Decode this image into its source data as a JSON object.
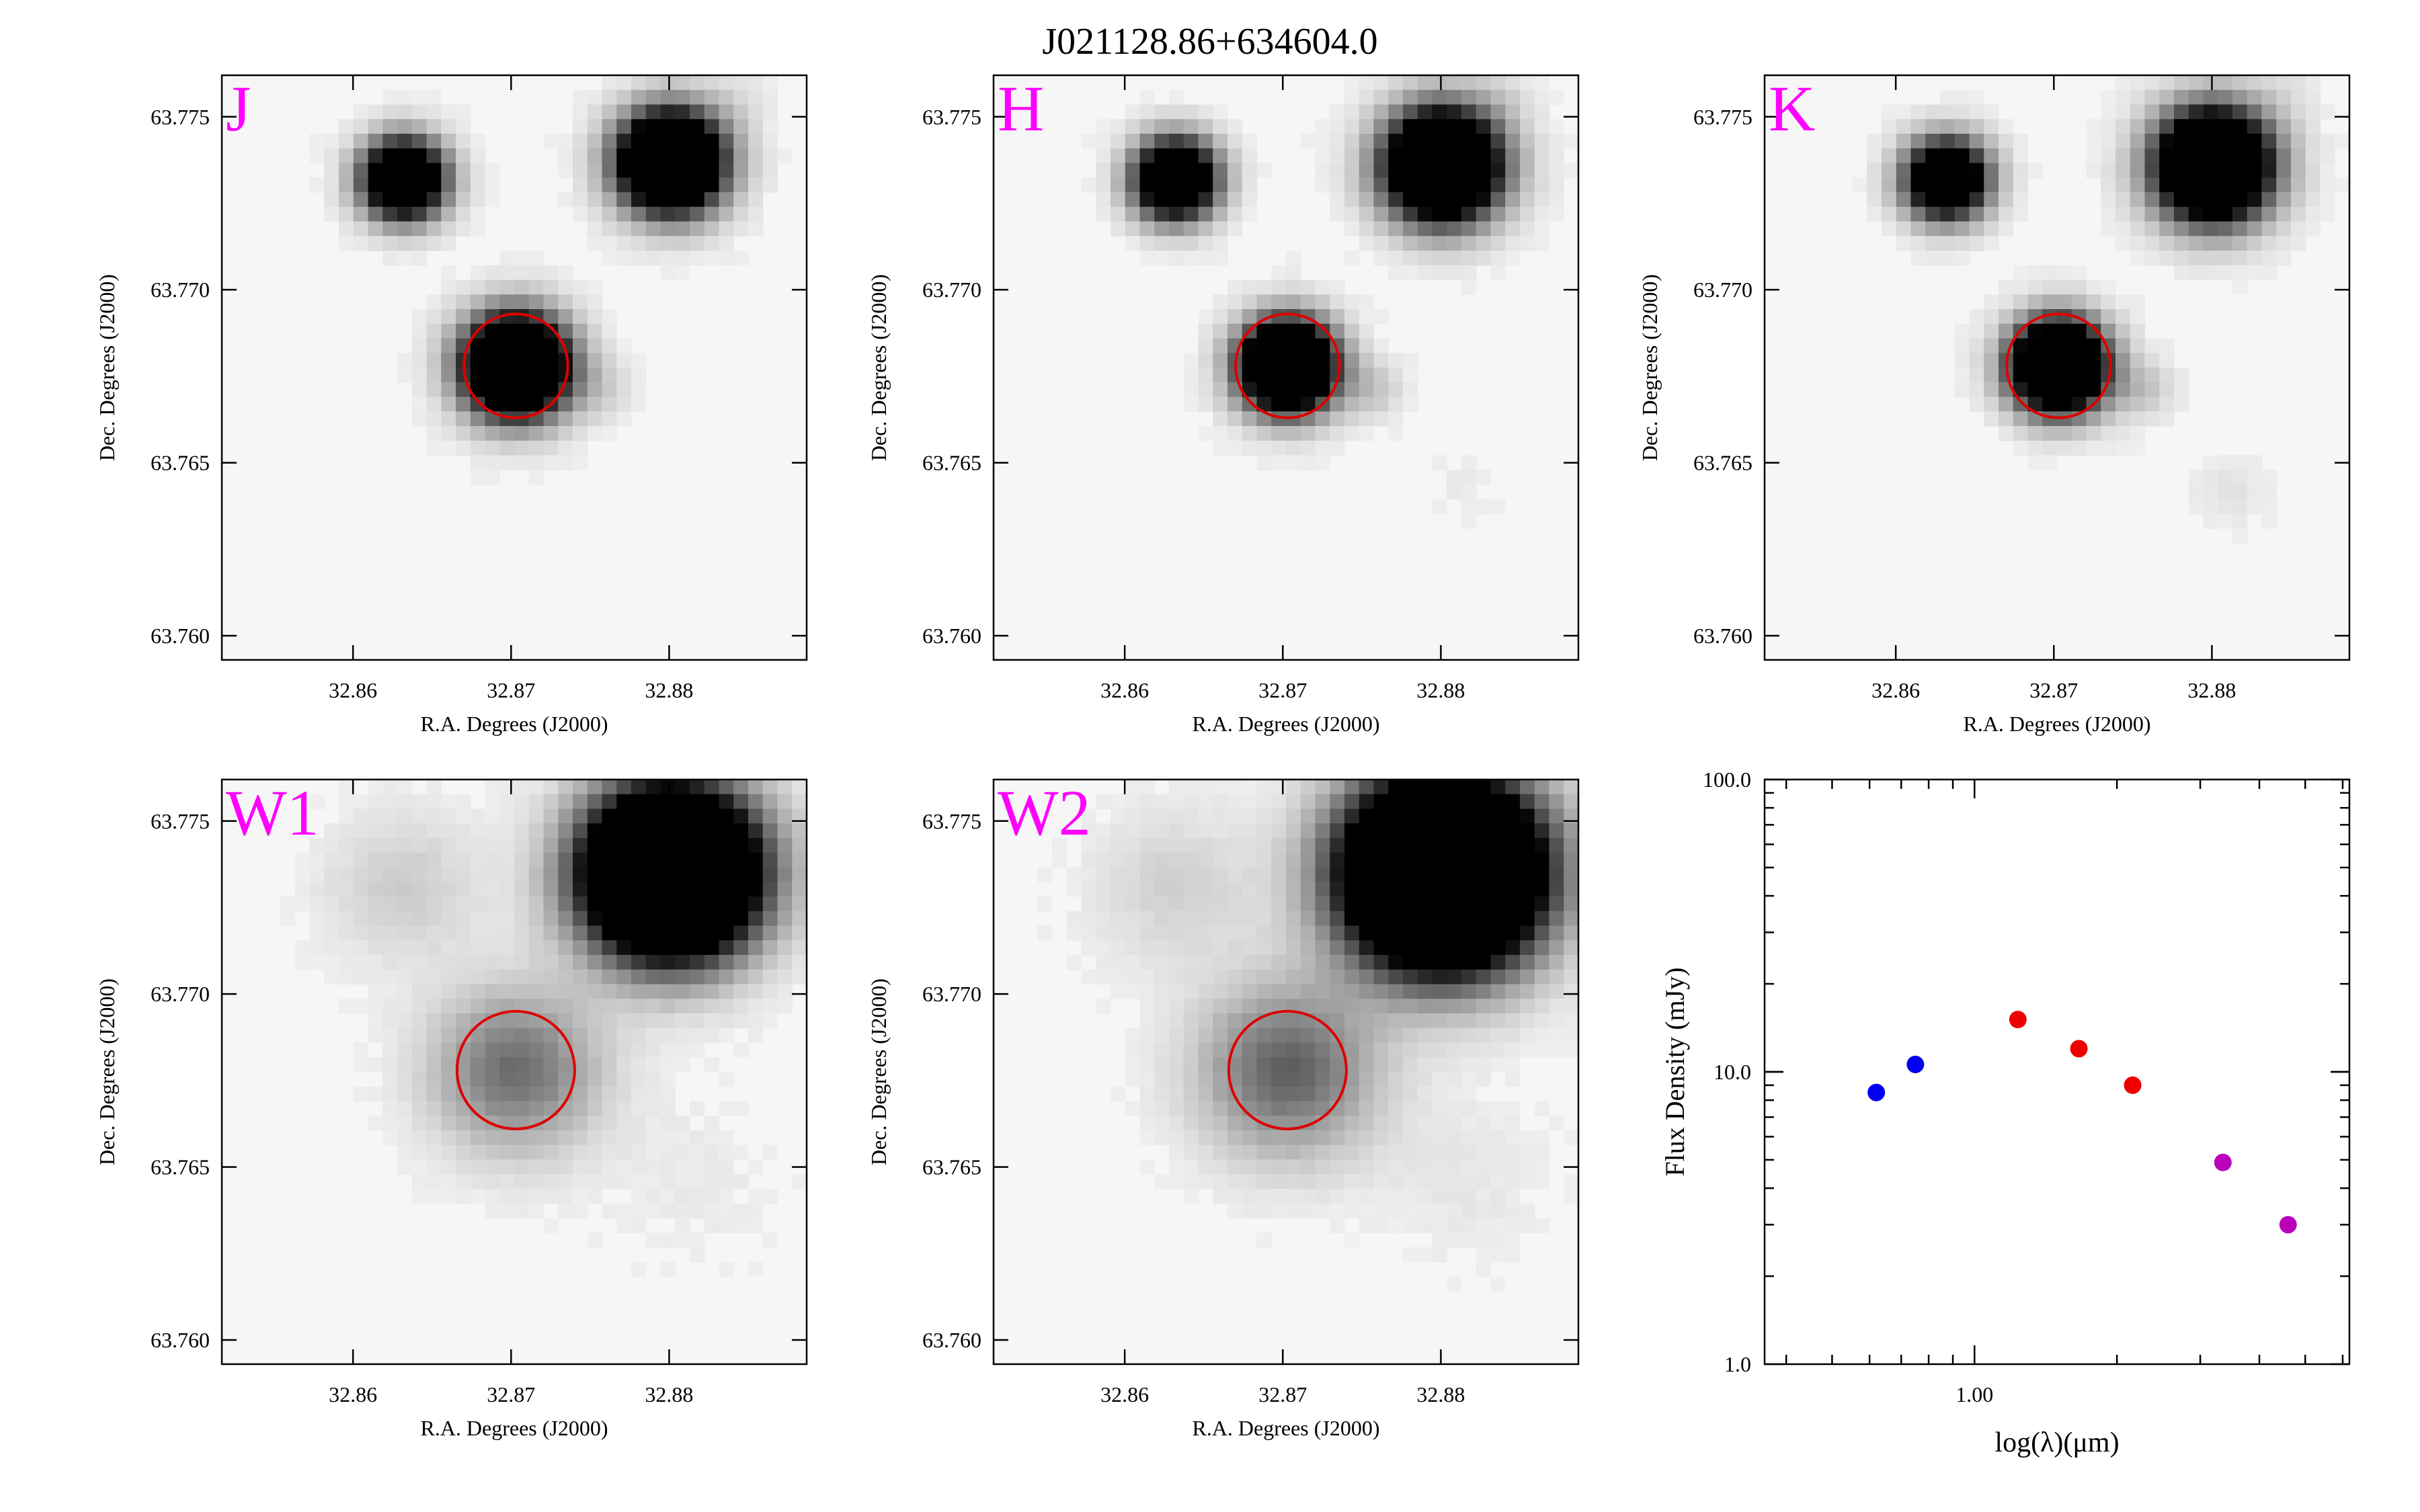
{
  "title": "J021128.86+634604.0",
  "colors": {
    "band_label": "#ff00ff",
    "aperture": "#dd0000",
    "blue": "#0000ee",
    "red": "#ee0000",
    "purple": "#bb00bb",
    "image_black": "#000000",
    "image_bg": "#f6f6f6"
  },
  "chart_data": [
    {
      "type": "heatmap",
      "label": "J",
      "xlabel": "R.A. Degrees (J2000)",
      "ylabel": "Dec. Degrees (J2000)",
      "xlim": [
        32.8517,
        32.8887
      ],
      "ylim": [
        63.7593,
        63.7762
      ],
      "x_ticks": [
        "32.86",
        "32.87",
        "32.88"
      ],
      "y_ticks": [
        "63.760",
        "63.765",
        "63.770",
        "63.775"
      ],
      "target": {
        "ra": 32.8703,
        "dec": 63.7678,
        "aperture_radius_deg": 0.0015
      },
      "sources": [
        {
          "ra": 32.8632,
          "dec": 63.7732,
          "sigma_deg": 0.0008,
          "amp": 1.9
        },
        {
          "ra": 32.8801,
          "dec": 63.7737,
          "sigma_deg": 0.001,
          "amp": 2.4
        },
        {
          "ra": 32.8703,
          "dec": 63.7678,
          "sigma_deg": 0.001,
          "amp": 2.4
        },
        {
          "ra": 32.8756,
          "dec": 63.7671,
          "sigma_deg": 0.0006,
          "amp": 0.12
        },
        {
          "ra": 32.8842,
          "dec": 63.7755,
          "sigma_deg": 0.0006,
          "amp": 0.06
        }
      ]
    },
    {
      "type": "heatmap",
      "label": "H",
      "xlabel": "R.A. Degrees (J2000)",
      "ylabel": "Dec. Degrees (J2000)",
      "xlim": [
        32.8517,
        32.8887
      ],
      "ylim": [
        63.7593,
        63.7762
      ],
      "x_ticks": [
        "32.86",
        "32.87",
        "32.88"
      ],
      "y_ticks": [
        "63.760",
        "63.765",
        "63.770",
        "63.775"
      ],
      "target": {
        "ra": 32.8703,
        "dec": 63.7678,
        "aperture_radius_deg": 0.0015
      },
      "sources": [
        {
          "ra": 32.8632,
          "dec": 63.7732,
          "sigma_deg": 0.0008,
          "amp": 1.9
        },
        {
          "ra": 32.8801,
          "dec": 63.7736,
          "sigma_deg": 0.0011,
          "amp": 2.4
        },
        {
          "ra": 32.8703,
          "dec": 63.7678,
          "sigma_deg": 0.0009,
          "amp": 2.4
        },
        {
          "ra": 32.8756,
          "dec": 63.7671,
          "sigma_deg": 0.0006,
          "amp": 0.18
        },
        {
          "ra": 32.8838,
          "dec": 63.7755,
          "sigma_deg": 0.0006,
          "amp": 0.06
        },
        {
          "ra": 32.8814,
          "dec": 63.7643,
          "sigma_deg": 0.0006,
          "amp": 0.04
        }
      ]
    },
    {
      "type": "heatmap",
      "label": "K",
      "xlabel": "R.A. Degrees (J2000)",
      "ylabel": "Dec. Degrees (J2000)",
      "xlim": [
        32.8517,
        32.8887
      ],
      "ylim": [
        63.7593,
        63.7762
      ],
      "x_ticks": [
        "32.86",
        "32.87",
        "32.88"
      ],
      "y_ticks": [
        "63.760",
        "63.765",
        "63.770",
        "63.775"
      ],
      "target": {
        "ra": 32.8703,
        "dec": 63.7678,
        "aperture_radius_deg": 0.0015
      },
      "sources": [
        {
          "ra": 32.8632,
          "dec": 63.7732,
          "sigma_deg": 0.0008,
          "amp": 1.8
        },
        {
          "ra": 32.8801,
          "dec": 63.7736,
          "sigma_deg": 0.0011,
          "amp": 2.4
        },
        {
          "ra": 32.8703,
          "dec": 63.7678,
          "sigma_deg": 0.0009,
          "amp": 2.4
        },
        {
          "ra": 32.8756,
          "dec": 63.7671,
          "sigma_deg": 0.0006,
          "amp": 0.18
        },
        {
          "ra": 32.8813,
          "dec": 63.7642,
          "sigma_deg": 0.0007,
          "amp": 0.07
        },
        {
          "ra": 32.885,
          "dec": 63.7757,
          "sigma_deg": 0.0006,
          "amp": 0.05
        }
      ]
    },
    {
      "type": "heatmap",
      "label": "W1",
      "xlabel": "R.A. Degrees (J2000)",
      "ylabel": "Dec. Degrees (J2000)",
      "xlim": [
        32.8517,
        32.8887
      ],
      "ylim": [
        63.7593,
        63.7762
      ],
      "x_ticks": [
        "32.86",
        "32.87",
        "32.88"
      ],
      "y_ticks": [
        "63.760",
        "63.765",
        "63.770",
        "63.775"
      ],
      "target": {
        "ra": 32.8703,
        "dec": 63.7678,
        "aperture_radius_deg": 0.0017
      },
      "sources": [
        {
          "ra": 32.8632,
          "dec": 63.7731,
          "sigma_deg": 0.0015,
          "amp": 0.16
        },
        {
          "ra": 32.8801,
          "dec": 63.7735,
          "sigma_deg": 0.0016,
          "amp": 3.2
        },
        {
          "ra": 32.8703,
          "dec": 63.7678,
          "sigma_deg": 0.0016,
          "amp": 0.55
        },
        {
          "ra": 32.8815,
          "dec": 63.7647,
          "sigma_deg": 0.0016,
          "amp": 0.04
        }
      ]
    },
    {
      "type": "heatmap",
      "label": "W2",
      "xlabel": "R.A. Degrees (J2000)",
      "ylabel": "Dec. Degrees (J2000)",
      "xlim": [
        32.8517,
        32.8887
      ],
      "ylim": [
        63.7593,
        63.7762
      ],
      "x_ticks": [
        "32.86",
        "32.87",
        "32.88"
      ],
      "y_ticks": [
        "63.760",
        "63.765",
        "63.770",
        "63.775"
      ],
      "target": {
        "ra": 32.8703,
        "dec": 63.7678,
        "aperture_radius_deg": 0.0017
      },
      "sources": [
        {
          "ra": 32.8632,
          "dec": 63.7731,
          "sigma_deg": 0.0016,
          "amp": 0.14
        },
        {
          "ra": 32.8801,
          "dec": 63.7735,
          "sigma_deg": 0.0018,
          "amp": 3.4
        },
        {
          "ra": 32.8703,
          "dec": 63.7678,
          "sigma_deg": 0.0017,
          "amp": 0.6
        },
        {
          "ra": 32.8815,
          "dec": 63.7647,
          "sigma_deg": 0.0017,
          "amp": 0.05
        }
      ]
    },
    {
      "type": "scatter",
      "xscale": "log",
      "yscale": "log",
      "xlabel": "log(λ)(μm)",
      "ylabel": "Flux Density (mJy)",
      "xlim": [
        0.36,
        6.2
      ],
      "ylim": [
        1.0,
        100.0
      ],
      "x_ticks": [
        "1.00"
      ],
      "y_ticks": [
        "1.0",
        "10.0",
        "100.0"
      ],
      "grid": false,
      "series": [
        {
          "color": "blue",
          "points": [
            {
              "x": 0.62,
              "y": 8.5
            },
            {
              "x": 0.75,
              "y": 10.6
            }
          ]
        },
        {
          "color": "red",
          "points": [
            {
              "x": 1.235,
              "y": 15.1
            },
            {
              "x": 1.662,
              "y": 12.0
            },
            {
              "x": 2.159,
              "y": 9.0
            }
          ]
        },
        {
          "color": "purple",
          "points": [
            {
              "x": 3.35,
              "y": 4.9
            },
            {
              "x": 4.6,
              "y": 3.0
            }
          ]
        }
      ]
    }
  ]
}
